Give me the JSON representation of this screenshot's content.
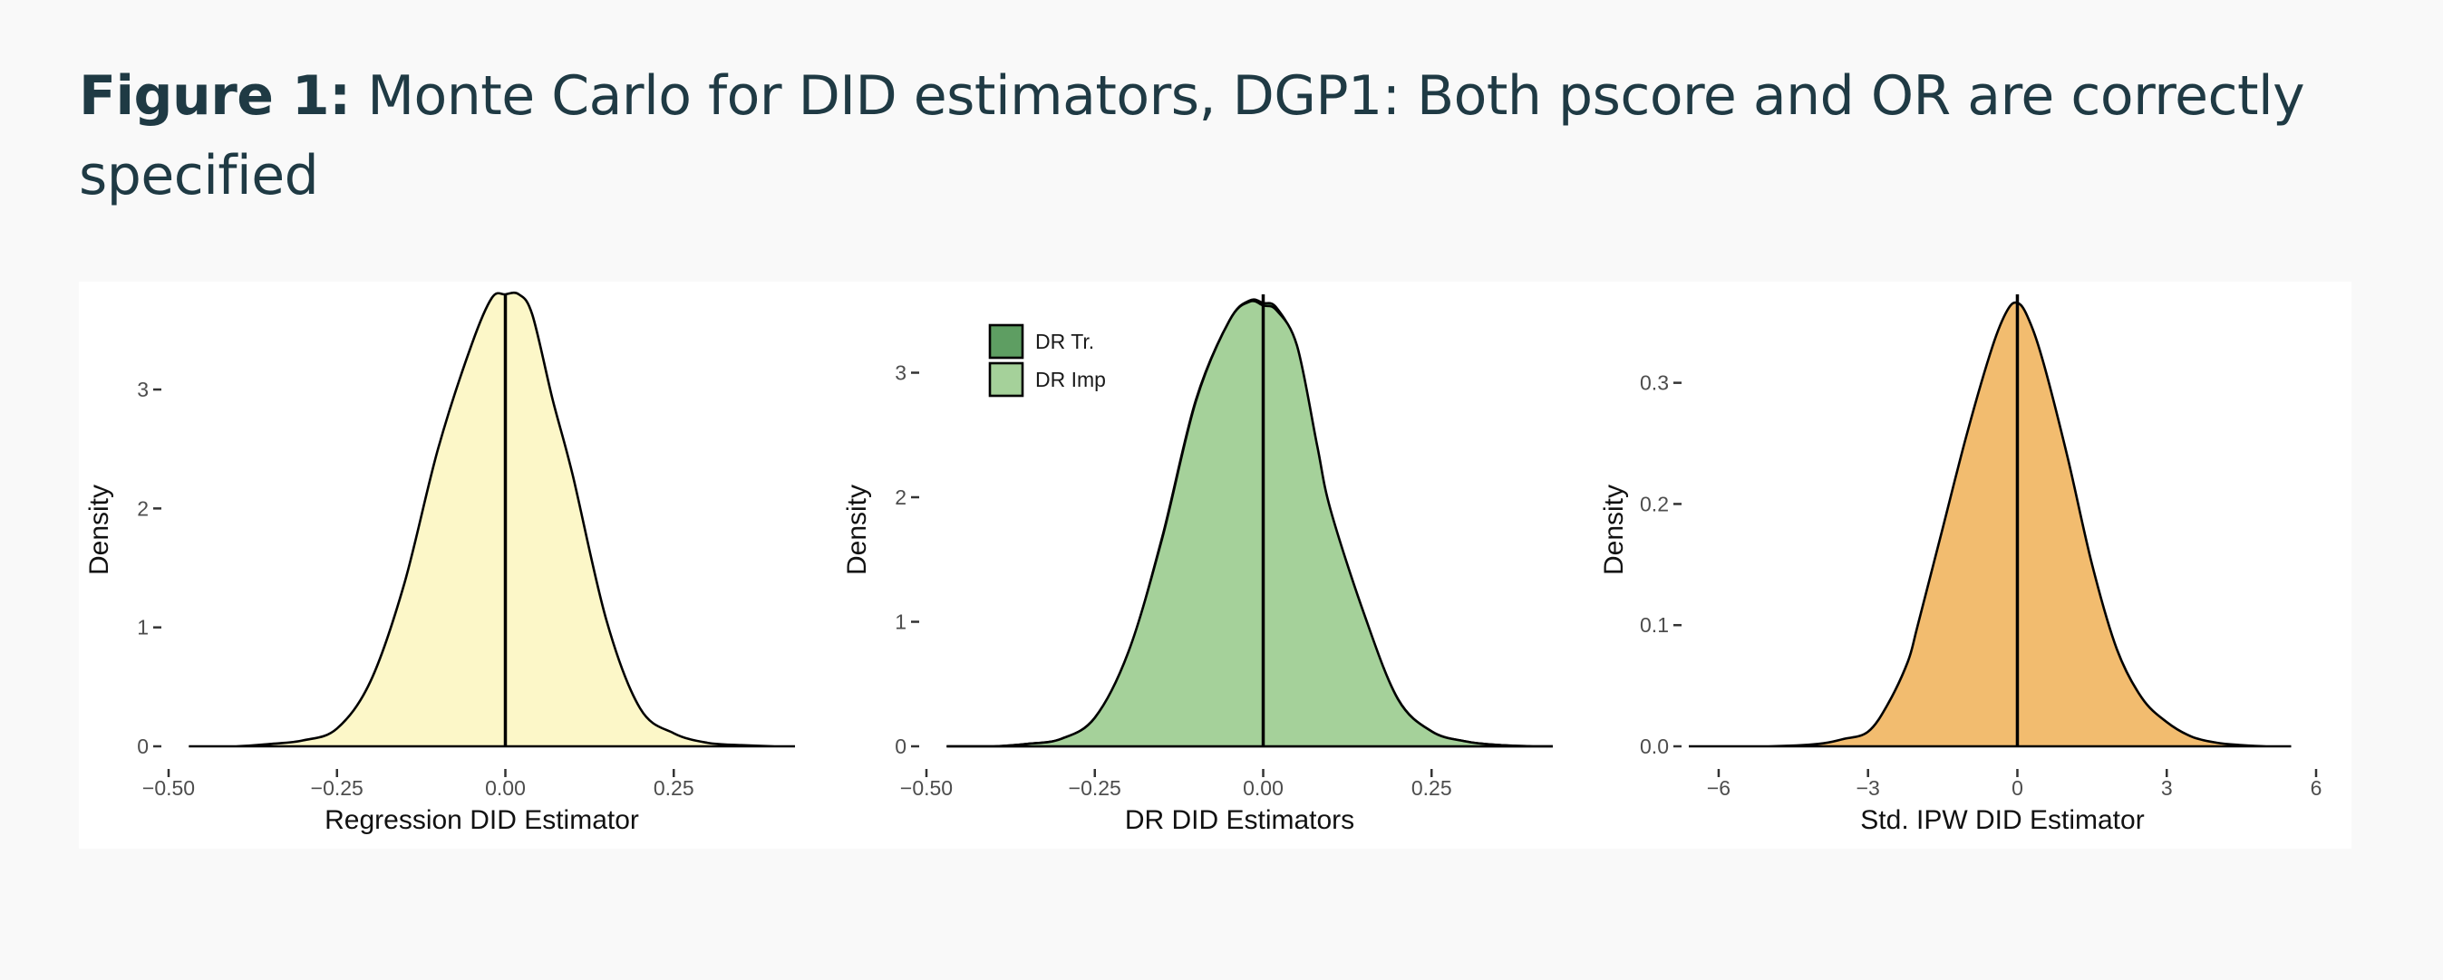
{
  "caption": {
    "lead": "Figure 1:",
    "text": "Monte Carlo for DID estimators, DGP1: Both pscore and OR are correctly specified"
  },
  "chart_data": [
    {
      "type": "area",
      "xlabel": "Regression DID Estimator",
      "ylabel": "Density",
      "xlim": [
        -0.5,
        0.43
      ],
      "ylim": [
        0,
        3.8
      ],
      "x_ticks": [
        -0.5,
        -0.25,
        0.0,
        0.25
      ],
      "x_tick_labels": [
        "−0.50",
        "−0.25",
        "0.00",
        "0.25"
      ],
      "y_ticks": [
        0,
        1,
        2,
        3
      ],
      "y_tick_labels": [
        "0",
        "1",
        "2",
        "3"
      ],
      "vline_x": 0,
      "series": [
        {
          "fill": "#fcf7c8",
          "x": [
            -0.47,
            -0.4,
            -0.35,
            -0.3,
            -0.25,
            -0.2,
            -0.15,
            -0.1,
            -0.05,
            -0.02,
            0.0,
            0.02,
            0.04,
            0.07,
            0.1,
            0.15,
            0.2,
            0.25,
            0.3,
            0.35,
            0.4,
            0.43
          ],
          "y": [
            0.0,
            0.0,
            0.02,
            0.05,
            0.15,
            0.55,
            1.37,
            2.5,
            3.38,
            3.77,
            3.8,
            3.8,
            3.63,
            2.92,
            2.28,
            1.06,
            0.32,
            0.11,
            0.03,
            0.01,
            0.0,
            0.0
          ]
        }
      ]
    },
    {
      "type": "area",
      "xlabel": "DR DID Estimators",
      "ylabel": "Density",
      "xlim": [
        -0.5,
        0.43
      ],
      "ylim": [
        0,
        3.6
      ],
      "x_ticks": [
        -0.5,
        -0.25,
        0.0,
        0.25
      ],
      "x_tick_labels": [
        "−0.50",
        "−0.25",
        "0.00",
        "0.25"
      ],
      "y_ticks": [
        0,
        1,
        2,
        3
      ],
      "y_tick_labels": [
        "0",
        "1",
        "2",
        "3"
      ],
      "vline_x": 0,
      "legend": {
        "position": "top-left",
        "labels": [
          "DR Tr.",
          "DR Imp"
        ]
      },
      "series": [
        {
          "name": "DR Tr.",
          "fill": "#5e9e62",
          "x": [
            -0.47,
            -0.4,
            -0.35,
            -0.3,
            -0.25,
            -0.2,
            -0.15,
            -0.1,
            -0.05,
            -0.02,
            0.0,
            0.02,
            0.05,
            0.08,
            0.1,
            0.15,
            0.2,
            0.25,
            0.3,
            0.35,
            0.4,
            0.43
          ],
          "y": [
            0.0,
            0.0,
            0.02,
            0.06,
            0.23,
            0.75,
            1.68,
            2.78,
            3.42,
            3.58,
            3.56,
            3.52,
            3.2,
            2.4,
            1.88,
            1.05,
            0.38,
            0.12,
            0.04,
            0.01,
            0.0,
            0.0
          ]
        },
        {
          "name": "DR Imp",
          "fill": "#a5d19a",
          "x": [
            -0.47,
            -0.4,
            -0.35,
            -0.3,
            -0.25,
            -0.2,
            -0.15,
            -0.1,
            -0.05,
            -0.02,
            0.0,
            0.02,
            0.05,
            0.08,
            0.1,
            0.15,
            0.2,
            0.25,
            0.3,
            0.35,
            0.4,
            0.43
          ],
          "y": [
            0.0,
            0.0,
            0.02,
            0.06,
            0.23,
            0.76,
            1.67,
            2.77,
            3.42,
            3.57,
            3.54,
            3.5,
            3.22,
            2.42,
            1.9,
            1.06,
            0.38,
            0.12,
            0.04,
            0.01,
            0.0,
            0.0
          ]
        }
      ]
    },
    {
      "type": "area",
      "xlabel": "Std. IPW DID Estimator",
      "ylabel": "Density",
      "xlim": [
        -6.6,
        6.0
      ],
      "ylim": [
        0,
        0.37
      ],
      "x_ticks": [
        -6,
        -3,
        0,
        3,
        6
      ],
      "x_tick_labels": [
        "−6",
        "−3",
        "0",
        "3",
        "6"
      ],
      "y_ticks": [
        0.0,
        0.1,
        0.2,
        0.3
      ],
      "y_tick_labels": [
        "0.0",
        "0.1",
        "0.2",
        "0.3"
      ],
      "vline_x": 0,
      "series": [
        {
          "fill": "#f2bc6f",
          "x": [
            -6.6,
            -5.0,
            -4.0,
            -3.5,
            -3.0,
            -2.6,
            -2.2,
            -2.0,
            -1.5,
            -1.0,
            -0.5,
            -0.2,
            0.0,
            0.2,
            0.5,
            1.0,
            1.5,
            2.0,
            2.5,
            3.0,
            3.5,
            4.0,
            4.5,
            5.0,
            5.5
          ],
          "y": [
            0.0,
            0.0,
            0.002,
            0.006,
            0.012,
            0.035,
            0.07,
            0.1,
            0.18,
            0.26,
            0.33,
            0.36,
            0.366,
            0.355,
            0.32,
            0.24,
            0.15,
            0.08,
            0.04,
            0.02,
            0.008,
            0.003,
            0.001,
            0.0,
            0.0
          ]
        }
      ]
    }
  ]
}
